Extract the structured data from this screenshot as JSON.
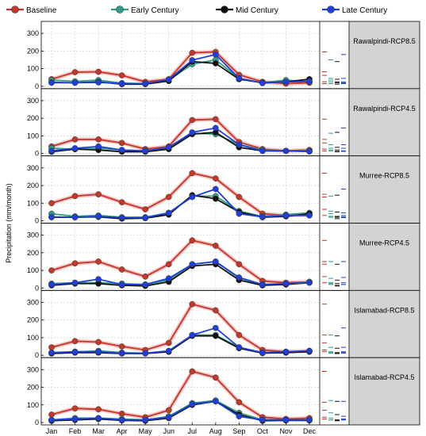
{
  "chart_data": {
    "type": "line",
    "ylabel": "Precipitation (mm/month)",
    "x": [
      "Jan",
      "Feb",
      "Mar",
      "Apr",
      "May",
      "Jun",
      "Jul",
      "Aug",
      "Sep",
      "Oct",
      "Nov",
      "Dec"
    ],
    "ylim": [
      0,
      350
    ],
    "yticks": [
      0,
      100,
      200,
      300
    ],
    "grid": true,
    "legend": "top",
    "series_names": [
      "Baseline",
      "Early Century",
      "Mid Century",
      "Late Century"
    ],
    "colors": {
      "Baseline": "#c0392b",
      "Early Century": "#2e9e86",
      "Mid Century": "#111111",
      "Late Century": "#1f3fd8",
      "side_panel": "#d3d3d3"
    },
    "panels": [
      {
        "label": "Rawalpindi-RCP8.5",
        "series": [
          {
            "name": "Baseline",
            "values": [
              40,
              80,
              82,
              62,
              25,
              40,
              190,
              195,
              65,
              25,
              15,
              20
            ]
          },
          {
            "name": "Early Century",
            "values": [
              35,
              28,
              35,
              18,
              15,
              35,
              125,
              150,
              45,
              20,
              35,
              25
            ]
          },
          {
            "name": "Mid Century",
            "values": [
              22,
              20,
              25,
              12,
              12,
              30,
              140,
              130,
              40,
              20,
              25,
              40
            ]
          },
          {
            "name": "Late Century",
            "values": [
              20,
              20,
              22,
              15,
              15,
              38,
              148,
              180,
              45,
              18,
              25,
              28
            ]
          }
        ]
      },
      {
        "label": "Rawalpindi-RCP4.5",
        "series": [
          {
            "name": "Baseline",
            "values": [
              40,
              80,
              80,
              60,
              25,
              40,
              190,
              195,
              65,
              25,
              15,
              20
            ]
          },
          {
            "name": "Early Century",
            "values": [
              30,
              25,
              30,
              20,
              15,
              30,
              115,
              110,
              50,
              20,
              15,
              15
            ]
          },
          {
            "name": "Mid Century",
            "values": [
              10,
              25,
              20,
              10,
              10,
              25,
              110,
              120,
              35,
              15,
              15,
              12
            ]
          },
          {
            "name": "Late Century",
            "values": [
              15,
              30,
              40,
              20,
              15,
              35,
              120,
              145,
              50,
              15,
              15,
              12
            ]
          }
        ]
      },
      {
        "label": "Murree-RCP8.5",
        "series": [
          {
            "name": "Baseline",
            "values": [
              100,
              140,
              150,
              105,
              65,
              135,
              270,
              240,
              135,
              40,
              30,
              35
            ]
          },
          {
            "name": "Early Century",
            "values": [
              40,
              25,
              30,
              20,
              20,
              45,
              140,
              140,
              55,
              25,
              35,
              45
            ]
          },
          {
            "name": "Mid Century",
            "values": [
              20,
              20,
              22,
              12,
              15,
              35,
              145,
              125,
              50,
              20,
              25,
              40
            ]
          },
          {
            "name": "Late Century",
            "values": [
              22,
              20,
              25,
              18,
              18,
              45,
              135,
              180,
              40,
              22,
              30,
              30
            ]
          }
        ]
      },
      {
        "label": "Murree-RCP4.5",
        "series": [
          {
            "name": "Baseline",
            "values": [
              100,
              140,
              150,
              105,
              65,
              135,
              270,
              240,
              135,
              40,
              30,
              35
            ]
          },
          {
            "name": "Early Century",
            "values": [
              25,
              30,
              30,
              25,
              20,
              45,
              135,
              150,
              55,
              20,
              20,
              35
            ]
          },
          {
            "name": "Mid Century",
            "values": [
              15,
              25,
              25,
              15,
              12,
              35,
              125,
              135,
              45,
              15,
              20,
              30
            ]
          },
          {
            "name": "Late Century",
            "values": [
              20,
              30,
              50,
              20,
              20,
              55,
              135,
              150,
              60,
              20,
              25,
              30
            ]
          }
        ]
      },
      {
        "label": "Islamabad-RCP8.5",
        "series": [
          {
            "name": "Baseline",
            "values": [
              45,
              80,
              75,
              50,
              30,
              70,
              290,
              255,
              115,
              30,
              20,
              25
            ]
          },
          {
            "name": "Early Century",
            "values": [
              15,
              20,
              25,
              15,
              12,
              20,
              115,
              115,
              45,
              15,
              15,
              25
            ]
          },
          {
            "name": "Mid Century",
            "values": [
              10,
              15,
              15,
              10,
              10,
              20,
              110,
              110,
              40,
              12,
              15,
              20
            ]
          },
          {
            "name": "Late Century",
            "values": [
              15,
              20,
              20,
              12,
              12,
              25,
              115,
              155,
              45,
              15,
              20,
              25
            ]
          }
        ]
      },
      {
        "label": "Islamabad-RCP4.5",
        "series": [
          {
            "name": "Baseline",
            "values": [
              45,
              80,
              75,
              50,
              30,
              70,
              290,
              255,
              115,
              30,
              20,
              25
            ]
          },
          {
            "name": "Early Century",
            "values": [
              15,
              25,
              25,
              20,
              15,
              35,
              110,
              125,
              55,
              15,
              15,
              15
            ]
          },
          {
            "name": "Mid Century",
            "values": [
              10,
              15,
              20,
              12,
              10,
              25,
              100,
              120,
              45,
              10,
              12,
              12
            ]
          },
          {
            "name": "Late Century",
            "values": [
              15,
              20,
              25,
              15,
              15,
              30,
              105,
              120,
              35,
              15,
              15,
              15
            ]
          }
        ]
      }
    ]
  }
}
